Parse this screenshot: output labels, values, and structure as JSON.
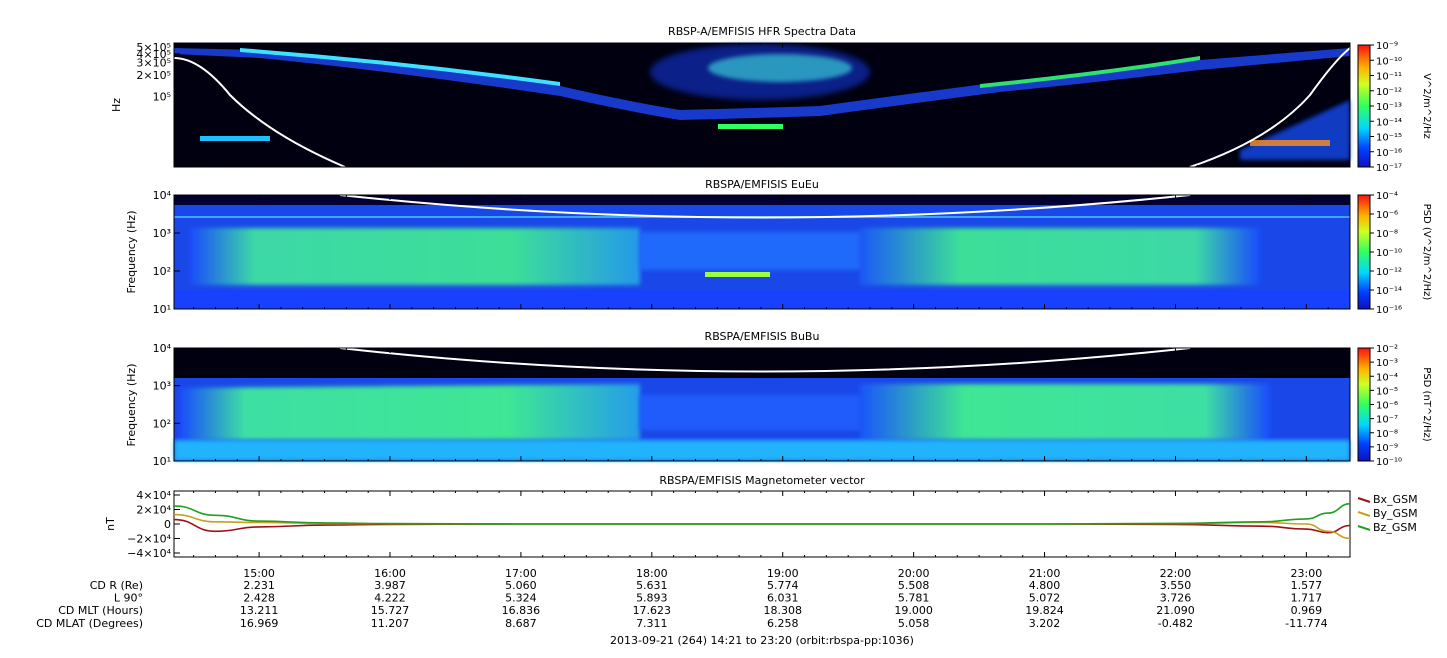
{
  "chart_data": [
    {
      "type": "heatmap",
      "title": "RBSP-A/EMFISIS  HFR Spectra Data",
      "ylabel": "Hz",
      "yticks": [
        "5×10⁵",
        "4×10⁵",
        "3×10⁵",
        "2×10⁵",
        "10⁵"
      ],
      "ytick_values": [
        500000,
        400000,
        300000,
        200000,
        100000
      ],
      "ylim": [
        10000,
        500000
      ],
      "yscale": "log",
      "colorbar_label": "V^2/m^2/Hz",
      "colorbar_ticks": [
        "10⁻⁹",
        "10⁻¹⁰",
        "10⁻¹¹",
        "10⁻¹²",
        "10⁻¹³",
        "10⁻¹⁴",
        "10⁻¹⁵",
        "10⁻¹⁶",
        "10⁻¹⁷"
      ]
    },
    {
      "type": "heatmap",
      "title": "RBSPA/EMFISIS  EuEu",
      "ylabel": "Frequency (Hz)",
      "yticks": [
        "10⁴",
        "10³",
        "10²",
        "10¹"
      ],
      "ylim": [
        10,
        10000
      ],
      "yscale": "log",
      "colorbar_label": "PSD (V^2/m^2/Hz)",
      "colorbar_ticks": [
        "10⁻⁴",
        "10⁻⁶",
        "10⁻⁸",
        "10⁻¹⁰",
        "10⁻¹²",
        "10⁻¹⁴",
        "10⁻¹⁶"
      ]
    },
    {
      "type": "heatmap",
      "title": "RBSPA/EMFISIS  BuBu",
      "ylabel": "Frequency (Hz)",
      "yticks": [
        "10⁴",
        "10³",
        "10²",
        "10¹"
      ],
      "ylim": [
        10,
        10000
      ],
      "yscale": "log",
      "colorbar_label": "PSD (nT^2/Hz)",
      "colorbar_ticks": [
        "10⁻²",
        "10⁻³",
        "10⁻⁴",
        "10⁻⁵",
        "10⁻⁶",
        "10⁻⁷",
        "10⁻⁸",
        "10⁻⁹",
        "10⁻¹⁰"
      ]
    },
    {
      "type": "line",
      "title": "RBSPA/EMFISIS  Magnetometer vector",
      "ylabel": "nT",
      "yticks": [
        "4×10⁴",
        "2×10⁴",
        "0",
        "−2×10⁴",
        "−4×10⁴"
      ],
      "ylim": [
        -40000,
        40000
      ],
      "x": [
        "14:21",
        "14:40",
        "15:00",
        "15:30",
        "16:00",
        "17:00",
        "18:00",
        "19:00",
        "20:00",
        "21:00",
        "22:00",
        "22:40",
        "23:00",
        "23:10",
        "23:20"
      ],
      "series": [
        {
          "name": "Bx_GSM",
          "color": "#a01010",
          "values": [
            6000,
            -10000,
            -4000,
            -1500,
            -500,
            0,
            0,
            0,
            0,
            0,
            -500,
            -3000,
            -7000,
            -12000,
            -2000
          ]
        },
        {
          "name": "By_GSM",
          "color": "#c8a020",
          "values": [
            13000,
            3000,
            2000,
            800,
            300,
            0,
            0,
            0,
            0,
            0,
            500,
            2000,
            0,
            -10000,
            -20000
          ]
        },
        {
          "name": "Bz_GSM",
          "color": "#20a020",
          "values": [
            25000,
            12000,
            4000,
            1500,
            500,
            0,
            0,
            0,
            0,
            0,
            800,
            3000,
            7000,
            15000,
            28000
          ]
        }
      ]
    }
  ],
  "time_axis": {
    "ticks": [
      "15:00",
      "16:00",
      "17:00",
      "18:00",
      "19:00",
      "20:00",
      "21:00",
      "22:00",
      "23:00"
    ],
    "rows": [
      {
        "label": "CD R (Re)",
        "values": [
          "2.231",
          "3.987",
          "5.060",
          "5.631",
          "5.774",
          "5.508",
          "4.800",
          "3.550",
          "1.577"
        ]
      },
      {
        "label": "L 90°",
        "values": [
          "2.428",
          "4.222",
          "5.324",
          "5.893",
          "6.031",
          "5.781",
          "5.072",
          "3.726",
          "1.717"
        ]
      },
      {
        "label": "CD MLT (Hours)",
        "values": [
          "13.211",
          "15.727",
          "16.836",
          "17.623",
          "18.308",
          "19.000",
          "19.824",
          "21.090",
          "0.969"
        ]
      },
      {
        "label": "CD MLAT (Degrees)",
        "values": [
          "16.969",
          "11.207",
          "8.687",
          "7.311",
          "6.258",
          "5.058",
          "3.202",
          "-0.482",
          "-11.774"
        ]
      }
    ],
    "footer": "2013-09-21 (264) 14:21 to 23:20 (orbit:rbspa-pp:1036)"
  }
}
